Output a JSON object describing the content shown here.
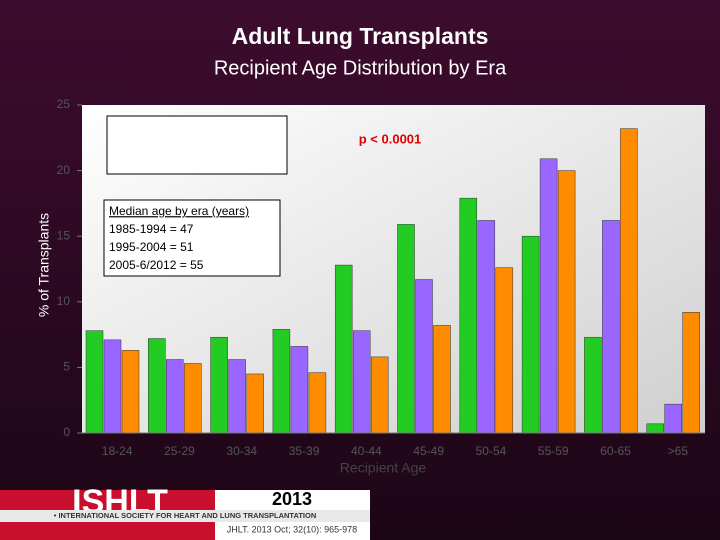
{
  "chart_data": {
    "type": "bar",
    "title": "Adult Lung Transplants",
    "subtitle": "Recipient Age Distribution by Era",
    "y_label": "% of Transplants",
    "x_label": "Recipient Age",
    "annotation": "p < 0.0001",
    "median_box": [
      "Median age by era (years)",
      "1985-1994 = 47",
      "1995-2004 = 51",
      "2005-6/2012 = 55"
    ],
    "categories": [
      "18-24",
      "25-29",
      "30-34",
      "35-39",
      "40-44",
      "45-49",
      "50-54",
      "55-59",
      "60-65",
      ">65"
    ],
    "series": [
      {
        "color": "#22cc22",
        "values": [
          7.8,
          7.2,
          7.3,
          7.9,
          12.8,
          15.9,
          17.9,
          15.0,
          7.3,
          0.7
        ]
      },
      {
        "color": "#9966ff",
        "values": [
          7.1,
          5.6,
          5.6,
          6.6,
          7.8,
          11.7,
          16.2,
          20.9,
          16.2,
          2.2
        ]
      },
      {
        "color": "#ff8c00",
        "values": [
          6.3,
          5.3,
          4.5,
          4.6,
          5.8,
          8.2,
          12.6,
          20.0,
          23.2,
          9.2
        ]
      }
    ],
    "ylim": [
      0,
      25
    ],
    "yticks": [
      0,
      5,
      10,
      15,
      20,
      25
    ]
  },
  "footer": {
    "logo": "ISHLT",
    "society": "• INTERNATIONAL SOCIETY FOR HEART AND LUNG TRANSPLANTATION",
    "year": "2013",
    "citation": "JHLT. 2013 Oct; 32(10): 965-978"
  }
}
